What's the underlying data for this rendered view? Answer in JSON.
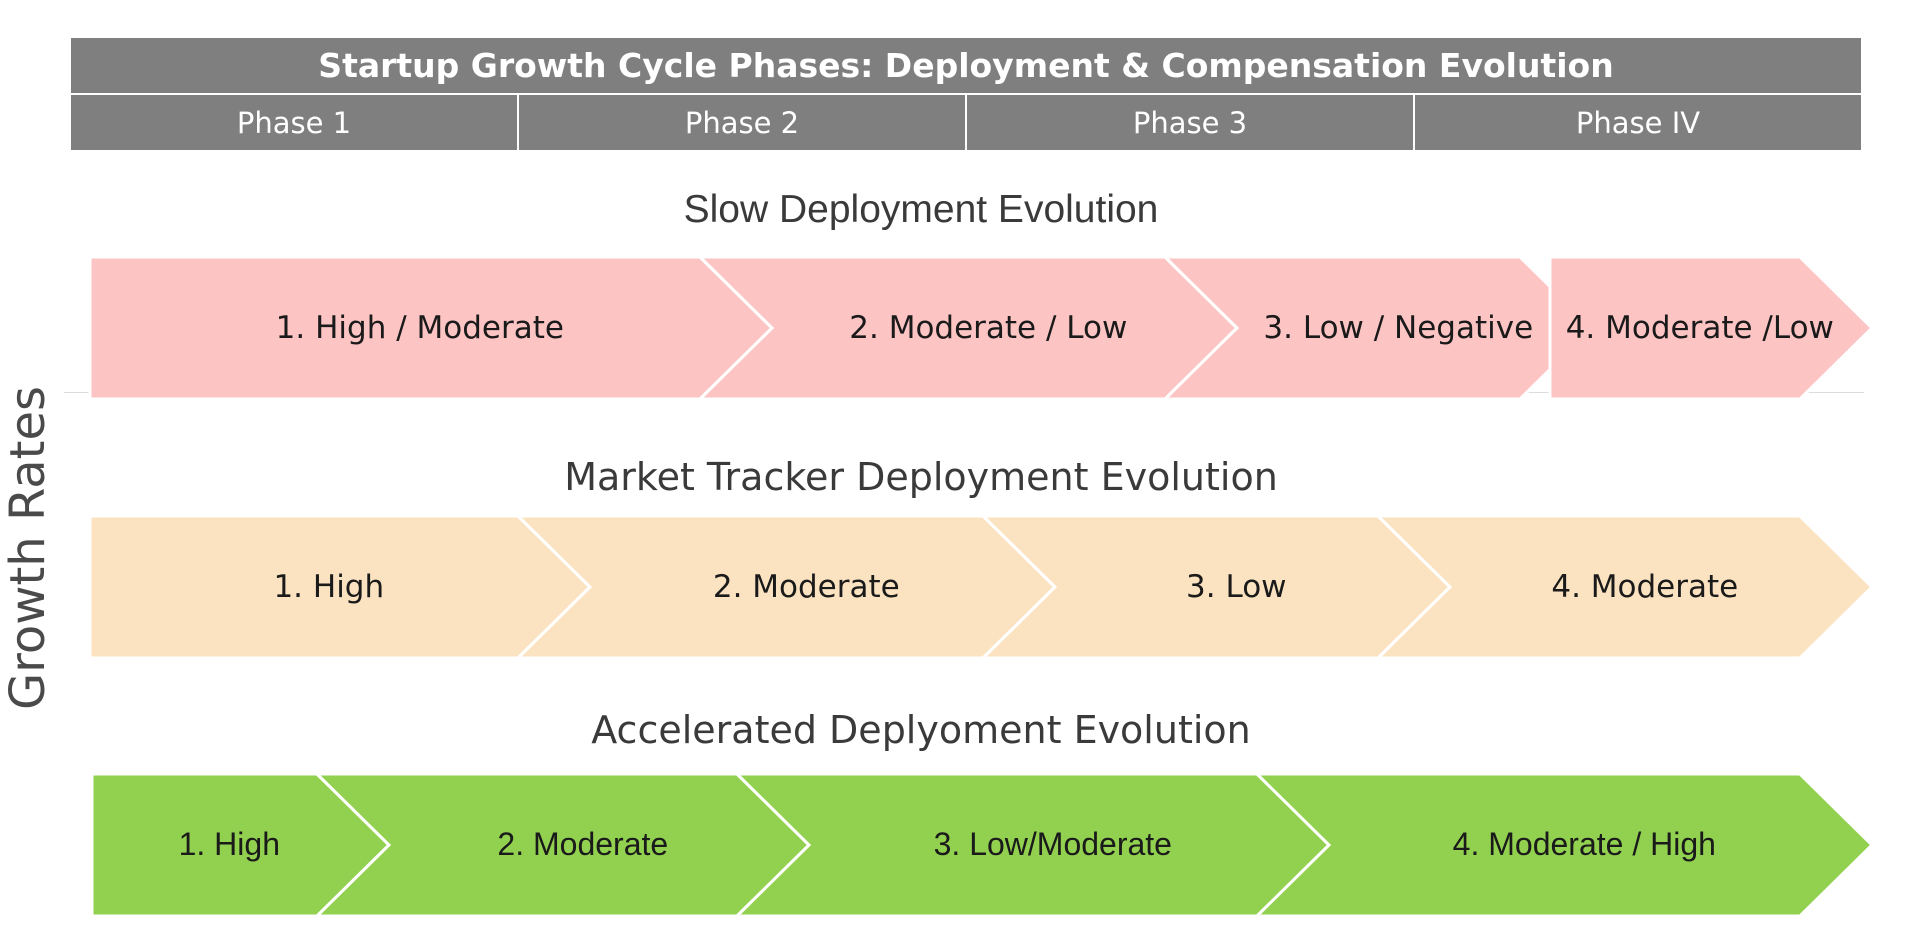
{
  "header": {
    "title": "Startup Growth Cycle Phases: Deployment & Compensation Evolution",
    "phases": [
      "Phase 1",
      "Phase 2",
      "Phase 3",
      "Phase IV"
    ]
  },
  "y_axis_label": "Growth Rates",
  "colors": {
    "header_bg": "#7f7f7f",
    "slow": "#fdc4c4",
    "market": "#fbe3c1",
    "accelerated": "#92d050"
  },
  "sections": [
    {
      "title": "Slow Deployment Evolution",
      "steps": [
        "1. High / Moderate",
        "2. Moderate / Low",
        "3. Low / Negative",
        "4. Moderate /Low"
      ]
    },
    {
      "title": "Market Tracker Deployment Evolution",
      "steps": [
        "1. High",
        "2. Moderate",
        "3. Low",
        "4. Moderate"
      ]
    },
    {
      "title": "Accelerated Deplyoment Evolution",
      "steps": [
        "1. High",
        "2. Moderate",
        "3. Low/Moderate",
        "4. Moderate / High"
      ]
    }
  ]
}
